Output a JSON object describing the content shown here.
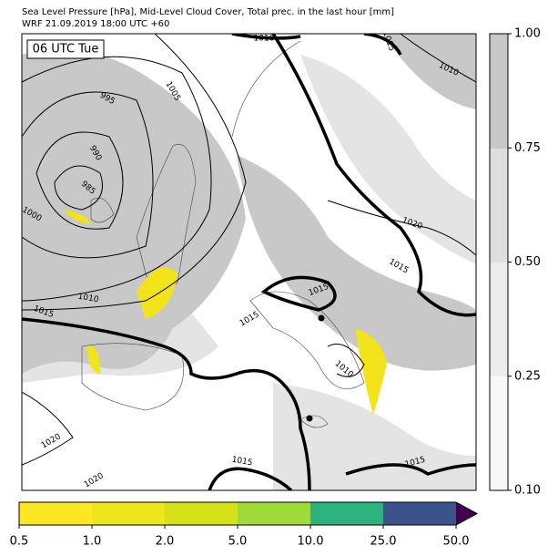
{
  "header": {
    "title": "Sea Level Pressure [hPa], Mid-Level Cloud Cover, Total prec. in the last hour [mm]",
    "subtitle": "WRF 21.09.2019 18:00 UTC +60"
  },
  "map": {
    "time_label": "06 UTC Tue",
    "contour_labels": [
      "1005",
      "995",
      "990",
      "985",
      "1000",
      "1010",
      "1015",
      "1015",
      "1015",
      "1010",
      "1020",
      "1015",
      "1015",
      "1010",
      "1020",
      "1020",
      "1015",
      "1015",
      "1010"
    ]
  },
  "cloud_colorbar": {
    "ticks": [
      "0.10",
      "0.25",
      "0.50",
      "0.75",
      "1.00"
    ]
  },
  "precip_colorbar": {
    "ticks": [
      "0.5",
      "1.0",
      "2.0",
      "5.0",
      "10.0",
      "25.0",
      "50.0"
    ]
  }
}
